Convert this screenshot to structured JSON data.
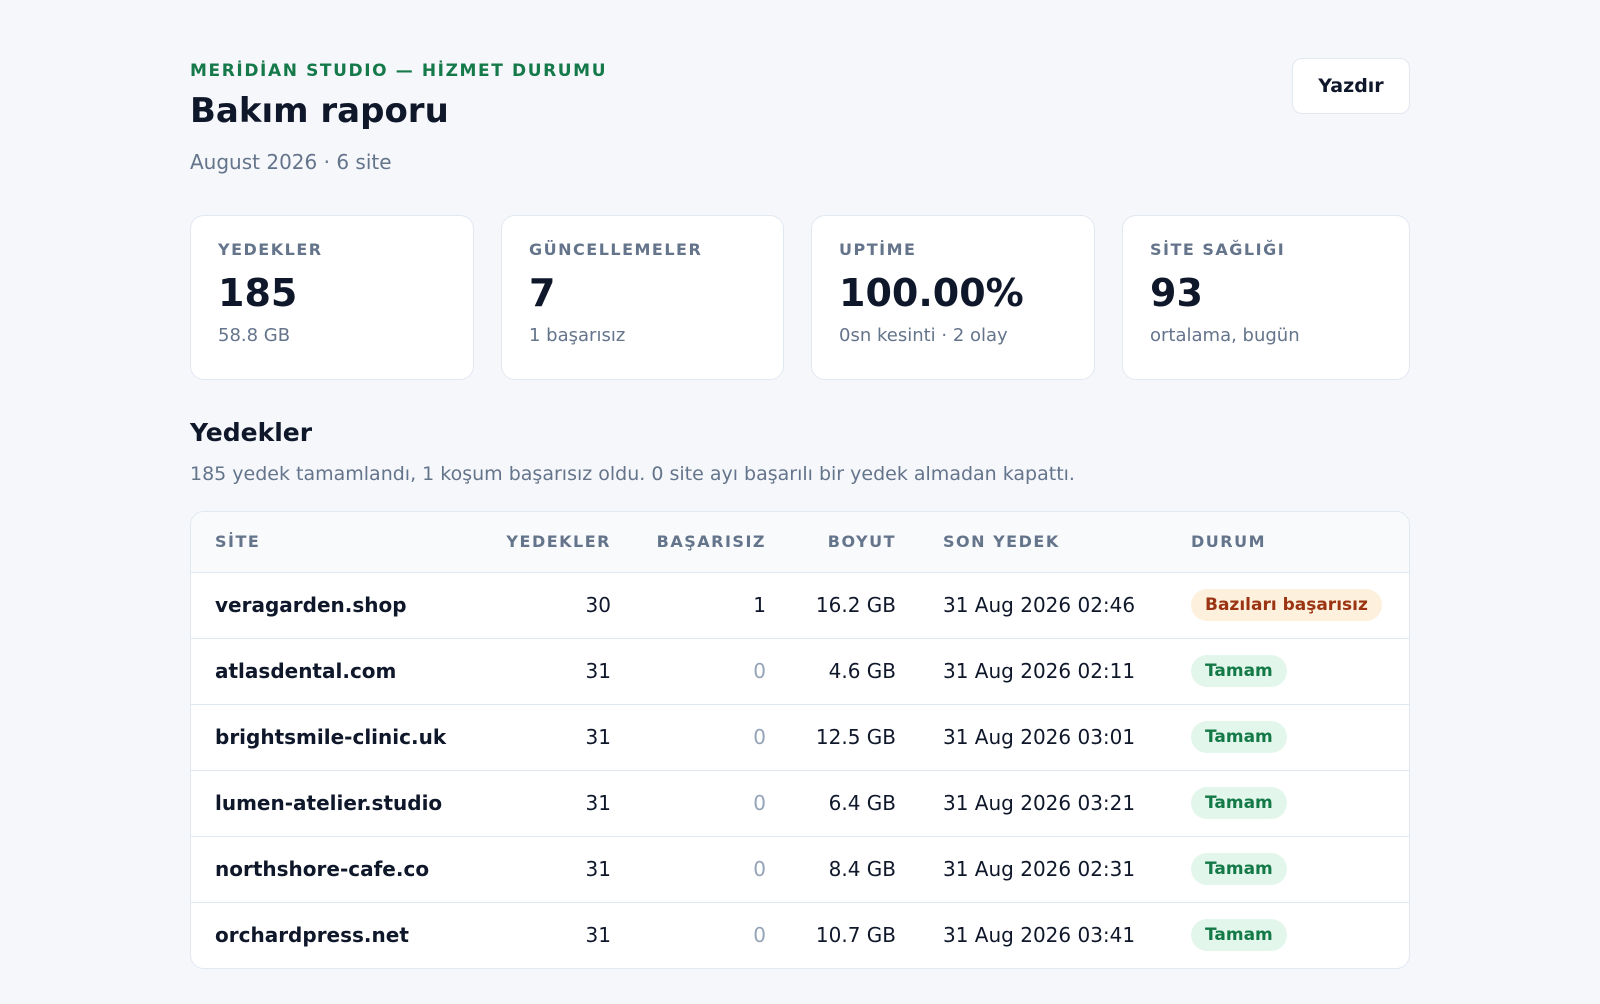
{
  "header": {
    "eyebrow": "MERİDİAN STUDIO — HİZMET DURUMU",
    "title": "Bakım raporu",
    "subtitle": "August 2026 · 6 site",
    "print_label": "Yazdır"
  },
  "stats": [
    {
      "label": "YEDEKLER",
      "value": "185",
      "sub": "58.8 GB"
    },
    {
      "label": "GÜNCELLEMELER",
      "value": "7",
      "sub": "1 başarısız"
    },
    {
      "label": "UPTİME",
      "value": "100.00%",
      "sub": "0sn kesinti · 2 olay"
    },
    {
      "label": "SİTE SAĞLIĞI",
      "value": "93",
      "sub": "ortalama, bugün"
    }
  ],
  "backups": {
    "title": "Yedekler",
    "description": "185 yedek tamamlandı, 1 koşum başarısız oldu. 0 site ayı başarılı bir yedek almadan kapattı.",
    "columns": {
      "site": "SİTE",
      "backups": "YEDEKLER",
      "failed": "BAŞARISIZ",
      "size": "BOYUT",
      "last": "SON YEDEK",
      "status": "DURUM"
    },
    "rows": [
      {
        "site": "veragarden.shop",
        "backups": "30",
        "failed": "1",
        "size": "16.2 GB",
        "last": "31 Aug 2026 02:46",
        "status": "Bazıları başarısız",
        "status_kind": "warn"
      },
      {
        "site": "atlasdental.com",
        "backups": "31",
        "failed": "0",
        "size": "4.6 GB",
        "last": "31 Aug 2026 02:11",
        "status": "Tamam",
        "status_kind": "ok"
      },
      {
        "site": "brightsmile-clinic.uk",
        "backups": "31",
        "failed": "0",
        "size": "12.5 GB",
        "last": "31 Aug 2026 03:01",
        "status": "Tamam",
        "status_kind": "ok"
      },
      {
        "site": "lumen-atelier.studio",
        "backups": "31",
        "failed": "0",
        "size": "6.4 GB",
        "last": "31 Aug 2026 03:21",
        "status": "Tamam",
        "status_kind": "ok"
      },
      {
        "site": "northshore-cafe.co",
        "backups": "31",
        "failed": "0",
        "size": "8.4 GB",
        "last": "31 Aug 2026 02:31",
        "status": "Tamam",
        "status_kind": "ok"
      },
      {
        "site": "orchardpress.net",
        "backups": "31",
        "failed": "0",
        "size": "10.7 GB",
        "last": "31 Aug 2026 03:41",
        "status": "Tamam",
        "status_kind": "ok"
      }
    ]
  }
}
